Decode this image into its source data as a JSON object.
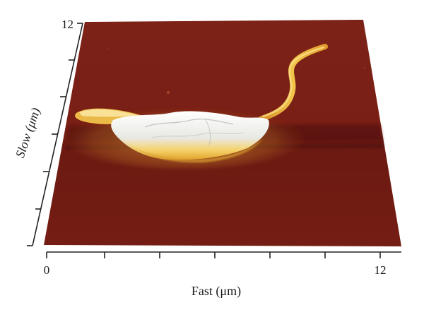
{
  "image": {
    "kind": "afm-3d-topography",
    "colors": {
      "substrate": "#7a1f16",
      "substrate_dark": "#5c140e",
      "highlight": "#f2c23a",
      "peak": "#f4f4f2"
    }
  },
  "axes": {
    "slow": {
      "label": "Slow (μm)",
      "tick_min": "12",
      "tick_count": 7
    },
    "fast": {
      "label": "Fast (μm)",
      "tick_min": "0",
      "tick_max": "12",
      "tick_count": 7
    }
  }
}
